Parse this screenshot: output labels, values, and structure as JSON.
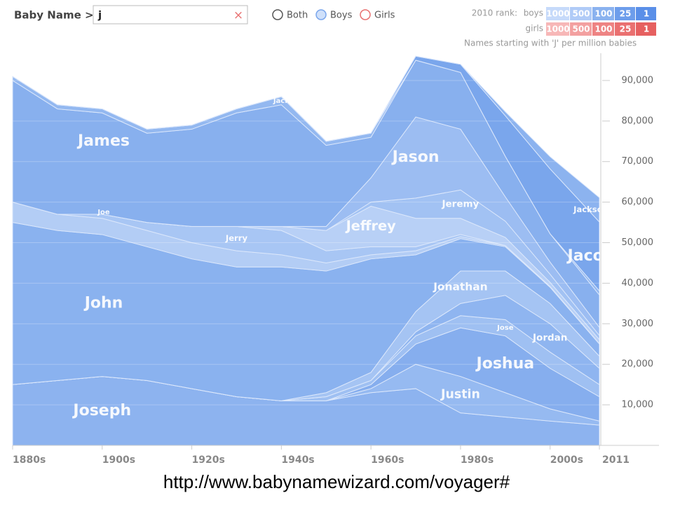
{
  "header": {
    "search_label": "Baby Name >",
    "search_value": "j",
    "clear": "×",
    "filters": [
      "Both",
      "Boys",
      "Girls"
    ],
    "rank_title": "2010 rank:",
    "rank_boys": "boys",
    "rank_girls": "girls",
    "rank_levels": [
      1000,
      500,
      100,
      25,
      1
    ]
  },
  "footer_url": "http://www.babynamewizard.com/voyager#",
  "chart_data": {
    "type": "stacked-area",
    "subtitle": "Names starting with 'J' per million babies",
    "x": [
      1880,
      1890,
      1900,
      1910,
      1920,
      1930,
      1940,
      1950,
      1960,
      1970,
      1980,
      1990,
      2000,
      2011
    ],
    "xlim": [
      1880,
      2011
    ],
    "xticks": [
      {
        "value": 1880,
        "label": "1880s"
      },
      {
        "value": 1900,
        "label": "1900s"
      },
      {
        "value": 1920,
        "label": "1920s"
      },
      {
        "value": 1940,
        "label": "1940s"
      },
      {
        "value": 1960,
        "label": "1960s"
      },
      {
        "value": 1980,
        "label": "1980s"
      },
      {
        "value": 2000,
        "label": "2000s"
      },
      2011
    ],
    "ylim": [
      0,
      95000
    ],
    "yticks": [
      {
        "value": 10000,
        "label": "10,000"
      },
      {
        "value": 20000,
        "label": "20,000"
      },
      {
        "value": 30000,
        "label": "30,000"
      },
      {
        "value": 40000,
        "label": "40,000"
      },
      {
        "value": 50000,
        "label": "50,000"
      },
      {
        "value": 60000,
        "label": "60,000"
      },
      {
        "value": 70000,
        "label": "70,000"
      },
      {
        "value": 80000,
        "label": "80,000"
      },
      {
        "value": 90000,
        "label": "90,000"
      }
    ],
    "grid": true,
    "series": [
      {
        "name": "Joseph",
        "color": "#8db3ef",
        "values": [
          15000,
          16000,
          17000,
          16000,
          14000,
          12000,
          11000,
          11000,
          13000,
          14000,
          8000,
          7000,
          6000,
          5000
        ]
      },
      {
        "name": "Justin",
        "color": "#96baf1",
        "values": [
          0,
          0,
          0,
          0,
          0,
          0,
          0,
          0,
          1000,
          6000,
          9000,
          6000,
          3000,
          1000
        ]
      },
      {
        "name": "Joshua",
        "color": "#86aeee",
        "values": [
          0,
          0,
          0,
          0,
          0,
          0,
          0,
          0,
          1000,
          5000,
          12000,
          14000,
          10000,
          6000
        ]
      },
      {
        "name": "Jose",
        "color": "#9fc0f2",
        "values": [
          0,
          0,
          0,
          0,
          0,
          0,
          0,
          1000,
          1000,
          2000,
          3000,
          4000,
          4000,
          3000
        ]
      },
      {
        "name": "Jordan",
        "color": "#8fb5f0",
        "values": [
          0,
          0,
          0,
          0,
          0,
          0,
          0,
          0,
          0,
          1000,
          3000,
          6000,
          7000,
          4000
        ]
      },
      {
        "name": "Jonathan",
        "color": "#a5c4f3",
        "values": [
          0,
          0,
          0,
          0,
          0,
          0,
          0,
          1000,
          2000,
          5000,
          8000,
          6000,
          5000,
          3000
        ]
      },
      {
        "name": "John",
        "color": "#8ab2ef",
        "values": [
          40000,
          37000,
          35000,
          33000,
          32000,
          32000,
          33000,
          30000,
          28000,
          14000,
          8000,
          6000,
          4000,
          3000
        ]
      },
      {
        "name": "Joe",
        "color": "#b3cdf5",
        "values": [
          5000,
          4000,
          4000,
          4000,
          4000,
          4000,
          3000,
          2000,
          1000,
          1000,
          500,
          300,
          200,
          100
        ]
      },
      {
        "name": "Jerry",
        "color": "#a8c6f4",
        "values": [
          0,
          0,
          1000,
          2000,
          4000,
          6000,
          6000,
          3000,
          2000,
          1000,
          500,
          0,
          0,
          0
        ]
      },
      {
        "name": "Jeffrey",
        "color": "#b8d0f6",
        "values": [
          0,
          0,
          0,
          0,
          0,
          0,
          1000,
          5000,
          10000,
          7000,
          4000,
          2000,
          1000,
          1000
        ]
      },
      {
        "name": "Jeremy",
        "color": "#a2c2f3",
        "values": [
          0,
          0,
          0,
          0,
          0,
          0,
          0,
          0,
          1000,
          5000,
          7000,
          4000,
          2000,
          1000
        ]
      },
      {
        "name": "Jason",
        "color": "#9cbdf2",
        "values": [
          0,
          0,
          0,
          0,
          0,
          0,
          0,
          1000,
          6000,
          20000,
          15000,
          6000,
          3000,
          2000
        ]
      },
      {
        "name": "James",
        "color": "#88b0ee",
        "values": [
          30000,
          26000,
          25000,
          22000,
          24000,
          28000,
          30000,
          20000,
          10000,
          14000,
          14000,
          10000,
          7000,
          8000
        ]
      },
      {
        "name": "Jack",
        "color": "#93b8f0",
        "values": [
          1000,
          1000,
          1000,
          1000,
          1000,
          1000,
          2000,
          1000,
          1000,
          0,
          0,
          0,
          0,
          1000
        ]
      },
      {
        "name": "Jacob",
        "color": "#7aa6ec",
        "values": [
          0,
          0,
          0,
          0,
          0,
          0,
          0,
          0,
          0,
          1000,
          2000,
          10000,
          16000,
          17000
        ]
      },
      {
        "name": "Jackson",
        "color": "#8cb3ef",
        "values": [
          0,
          0,
          0,
          0,
          0,
          0,
          0,
          0,
          0,
          0,
          0,
          1000,
          3000,
          6000
        ]
      }
    ]
  }
}
